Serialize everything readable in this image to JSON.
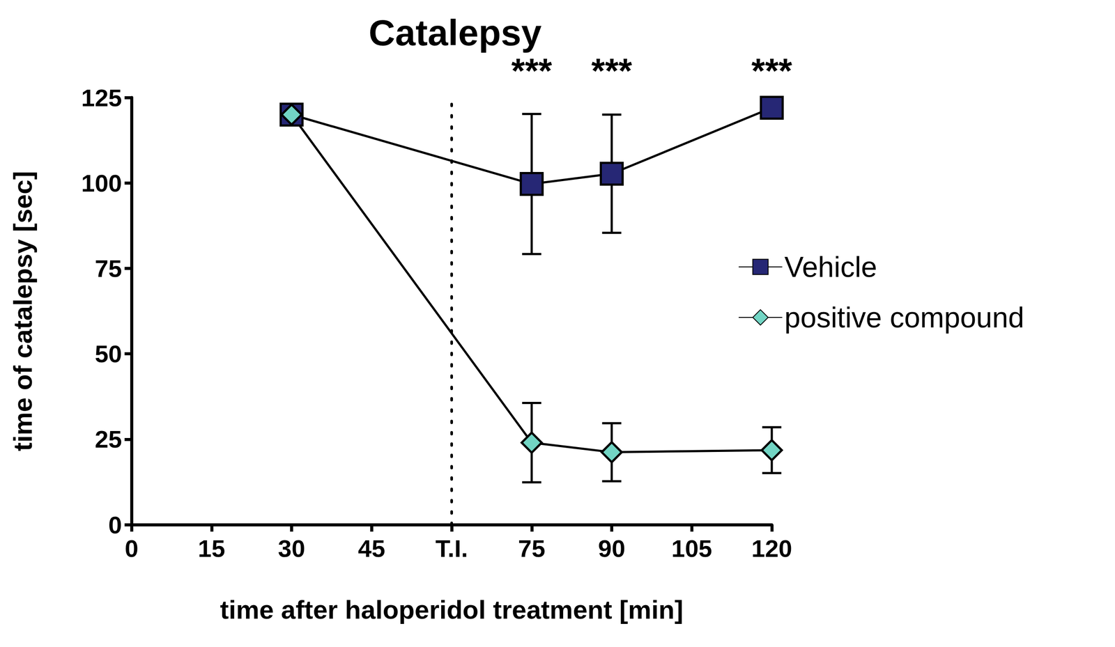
{
  "chart_data": {
    "type": "line",
    "title": "Catalepsy",
    "x_label": "time after haloperidol treatment [min]",
    "y_label": "time of catalepsy [sec]",
    "xlim": [
      0,
      120
    ],
    "xticks": [
      0,
      15,
      30,
      45,
      {
        "value": 60,
        "label": "T.I."
      },
      75,
      90,
      105,
      120
    ],
    "ylim": [
      0,
      125
    ],
    "yticks": [
      0,
      25,
      50,
      75,
      100,
      125
    ],
    "grid": false,
    "legend": "right",
    "vlines": [
      {
        "x": 60,
        "line_style": "dotted"
      }
    ],
    "annotations": [
      {
        "x": 75,
        "text": "***"
      },
      {
        "x": 90,
        "text": "***"
      },
      {
        "x": 120,
        "text": "***"
      }
    ],
    "series": [
      {
        "name": "Vehicle",
        "color": "#262775",
        "marker": "square",
        "x": [
          30,
          75,
          90,
          120
        ],
        "values": [
          120,
          99.7,
          102.7,
          122
        ],
        "errors": [
          0,
          20.5,
          17.3,
          0
        ]
      },
      {
        "name": "positive compound",
        "color": "#72d5c4",
        "marker": "diamond",
        "x": [
          30,
          75,
          90,
          120
        ],
        "values": [
          120,
          24,
          21.2,
          21.8
        ],
        "errors": [
          0,
          11.6,
          8.5,
          6.7
        ]
      }
    ]
  }
}
